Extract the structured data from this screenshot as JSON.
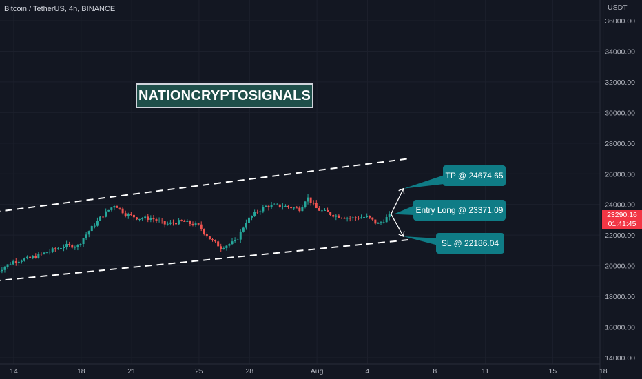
{
  "header": {
    "symbol_title": "Bitcoin / TetherUS, 4h, BINANCE"
  },
  "brand": {
    "label": "NATIONCRYPTOSIGNALS"
  },
  "price_scale": {
    "currency": "USDT"
  },
  "last_price": {
    "value": "23290.16",
    "countdown": "01:41:45"
  },
  "signals": {
    "tp": "TP @ 24674.65",
    "entry": "Entry Long @ 23371.09",
    "sl": "SL @ 22186.04"
  },
  "colors": {
    "background": "#131722",
    "bullish": "#26a69a",
    "bearish": "#ef5350",
    "callout": "#0f7c86",
    "brand_box": "#1f4f4a",
    "last_price_tag": "#f23645"
  },
  "chart_data": {
    "type": "candlestick",
    "ylim": [
      13500,
      36500
    ],
    "y_ticks": [
      14000,
      16000,
      18000,
      20000,
      22000,
      24000,
      26000,
      28000,
      30000,
      32000,
      34000,
      36000
    ],
    "y_tick_labels": [
      "14000.00",
      "16000.00",
      "18000.00",
      "20000.00",
      "22000.00",
      "24000.00",
      "26000.00",
      "28000.00",
      "30000.00",
      "32000.00",
      "34000.00",
      "36000.00"
    ],
    "x_ticks": [
      {
        "label": "14",
        "day": 14
      },
      {
        "label": "18",
        "day": 18
      },
      {
        "label": "21",
        "day": 21
      },
      {
        "label": "25",
        "day": 25
      },
      {
        "label": "28",
        "day": 28
      },
      {
        "label": "Aug",
        "day": 32
      },
      {
        "label": "4",
        "day": 35
      },
      {
        "label": "8",
        "day": 39
      },
      {
        "label": "11",
        "day": 42
      },
      {
        "label": "15",
        "day": 46
      },
      {
        "label": "18",
        "day": 49
      }
    ],
    "price_path": [
      [
        12.8,
        19500
      ],
      [
        14.0,
        20300
      ],
      [
        15.0,
        20500
      ],
      [
        16.0,
        20900
      ],
      [
        17.0,
        21300
      ],
      [
        17.8,
        21300
      ],
      [
        18.4,
        22200
      ],
      [
        19.2,
        23200
      ],
      [
        20.0,
        24000
      ],
      [
        20.6,
        23400
      ],
      [
        21.4,
        23100
      ],
      [
        22.2,
        23100
      ],
      [
        23.0,
        22700
      ],
      [
        24.0,
        22900
      ],
      [
        25.0,
        22600
      ],
      [
        25.6,
        21800
      ],
      [
        26.3,
        21200
      ],
      [
        27.2,
        21600
      ],
      [
        27.8,
        22900
      ],
      [
        28.4,
        23500
      ],
      [
        29.0,
        23900
      ],
      [
        30.0,
        23900
      ],
      [
        31.0,
        23700
      ],
      [
        31.4,
        24500
      ],
      [
        32.0,
        23700
      ],
      [
        33.0,
        23300
      ],
      [
        34.0,
        23100
      ],
      [
        35.0,
        23200
      ],
      [
        35.6,
        22700
      ],
      [
        36.0,
        23000
      ],
      [
        36.4,
        23371
      ]
    ],
    "channel": {
      "upper": [
        [
          12.8,
          23500
        ],
        [
          37.5,
          27000
        ]
      ],
      "lower": [
        [
          12.8,
          19000
        ],
        [
          37.5,
          21700
        ]
      ]
    },
    "annotations": {
      "entry_day": 36.4,
      "entry_price": 23371.09,
      "tp_price": 24674.65,
      "sl_price": 22186.04
    }
  }
}
